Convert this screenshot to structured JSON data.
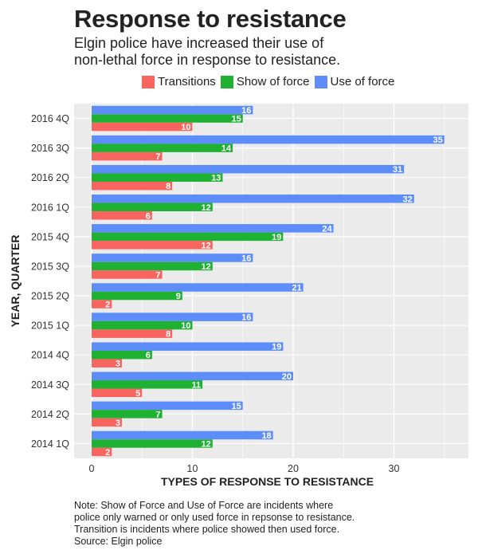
{
  "title": "Response to resistance",
  "subtitle": "Elgin police have increased their use of\nnon-lethal force in response to resistance.",
  "note": "Note: Show of Force and Use of Force are incidents where\npolice only warned or only used force in repsonse to resistance.\nTransition is incidents where police showed then used force.\nSource: Elgin police",
  "colors": {
    "Transitions": "#F8645E",
    "Show of force": "#1FB132",
    "Use of force": "#5C8DF8",
    "panel": "#EBEBEB",
    "grid": "#FFFFFF"
  },
  "chart_data": {
    "type": "bar",
    "orientation": "horizontal",
    "title": "Response to resistance",
    "subtitle": "Elgin police have increased their use of non-lethal force in response to resistance.",
    "xlabel": "TYPES OF RESPONSE TO RESISTANCE",
    "ylabel": "YEAR, QUARTER",
    "xlim": [
      0,
      36
    ],
    "xticks": [
      0,
      10,
      20,
      30
    ],
    "legend_position": "top",
    "grid": true,
    "categories": [
      "2016 4Q",
      "2016 3Q",
      "2016 2Q",
      "2016 1Q",
      "2015 4Q",
      "2015 3Q",
      "2015 2Q",
      "2015 1Q",
      "2014 4Q",
      "2014 3Q",
      "2014 2Q",
      "2014 1Q"
    ],
    "series": [
      {
        "name": "Transitions",
        "values": [
          10,
          7,
          8,
          6,
          12,
          7,
          2,
          8,
          3,
          5,
          3,
          2
        ]
      },
      {
        "name": "Show of force",
        "values": [
          15,
          14,
          13,
          12,
          19,
          12,
          9,
          10,
          6,
          11,
          7,
          12
        ]
      },
      {
        "name": "Use of force",
        "values": [
          16,
          35,
          31,
          32,
          24,
          16,
          21,
          16,
          19,
          20,
          15,
          18
        ]
      }
    ]
  }
}
